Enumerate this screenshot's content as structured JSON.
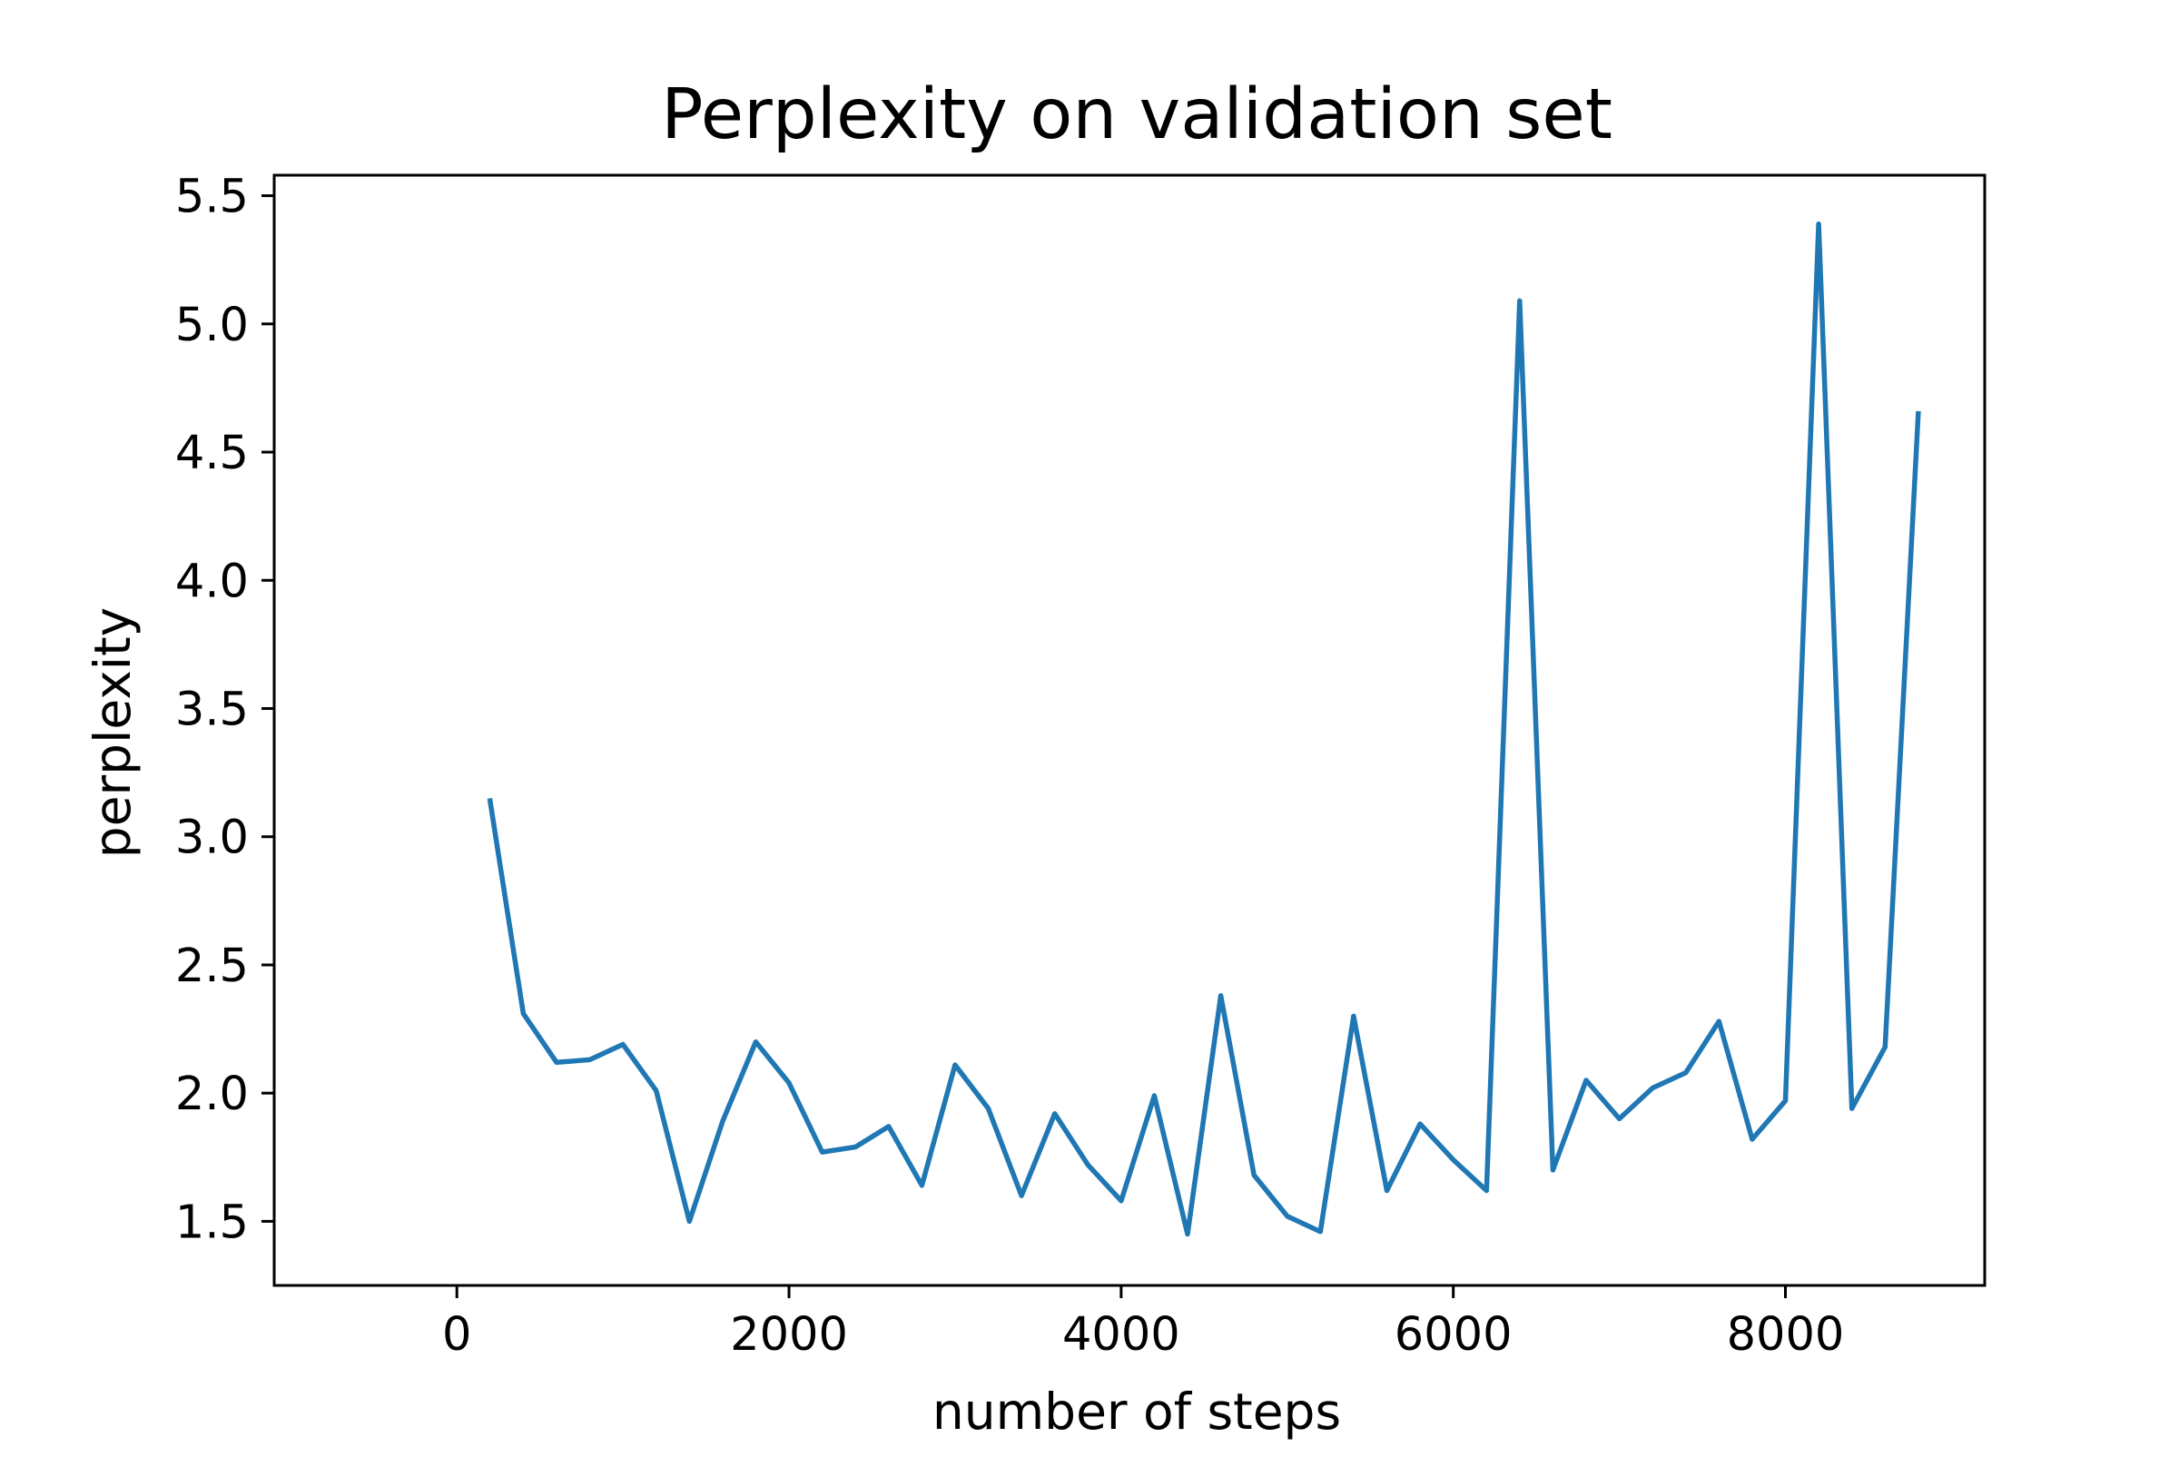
{
  "chart_data": {
    "type": "line",
    "title": "Perplexity on validation set",
    "xlabel": "number of steps",
    "ylabel": "perplexity",
    "xlim": [
      -1100,
      9200
    ],
    "ylim": [
      1.25,
      5.58
    ],
    "xticks": [
      0,
      2000,
      4000,
      6000,
      8000
    ],
    "xtick_labels": [
      "0",
      "2000",
      "4000",
      "6000",
      "8000"
    ],
    "yticks": [
      1.5,
      2.0,
      2.5,
      3.0,
      3.5,
      4.0,
      4.5,
      5.0,
      5.5
    ],
    "ytick_labels": [
      "1.5",
      "2.0",
      "2.5",
      "3.0",
      "3.5",
      "4.0",
      "4.5",
      "5.0",
      "5.5"
    ],
    "grid": false,
    "series": [
      {
        "color": "#1f77b4",
        "x": [
          200,
          400,
          600,
          800,
          1000,
          1200,
          1400,
          1600,
          1800,
          2000,
          2200,
          2400,
          2600,
          2800,
          3000,
          3200,
          3400,
          3600,
          3800,
          4000,
          4200,
          4400,
          4600,
          4800,
          5000,
          5200,
          5400,
          5600,
          5800,
          6000,
          6200,
          6400,
          6600,
          6800,
          7000,
          7200,
          7400,
          7600,
          7800,
          8000,
          8200,
          8400,
          8600,
          8800
        ],
        "y": [
          3.14,
          2.31,
          2.12,
          2.13,
          2.19,
          2.01,
          1.5,
          1.89,
          2.2,
          2.04,
          1.77,
          1.79,
          1.87,
          1.64,
          2.11,
          1.94,
          1.6,
          1.92,
          1.72,
          1.58,
          1.99,
          1.45,
          2.38,
          1.68,
          1.52,
          1.46,
          2.3,
          1.62,
          1.88,
          1.74,
          1.62,
          5.09,
          1.7,
          2.05,
          1.9,
          2.02,
          2.08,
          2.28,
          1.82,
          1.97,
          5.39,
          1.94,
          2.18,
          4.65
        ]
      }
    ]
  }
}
